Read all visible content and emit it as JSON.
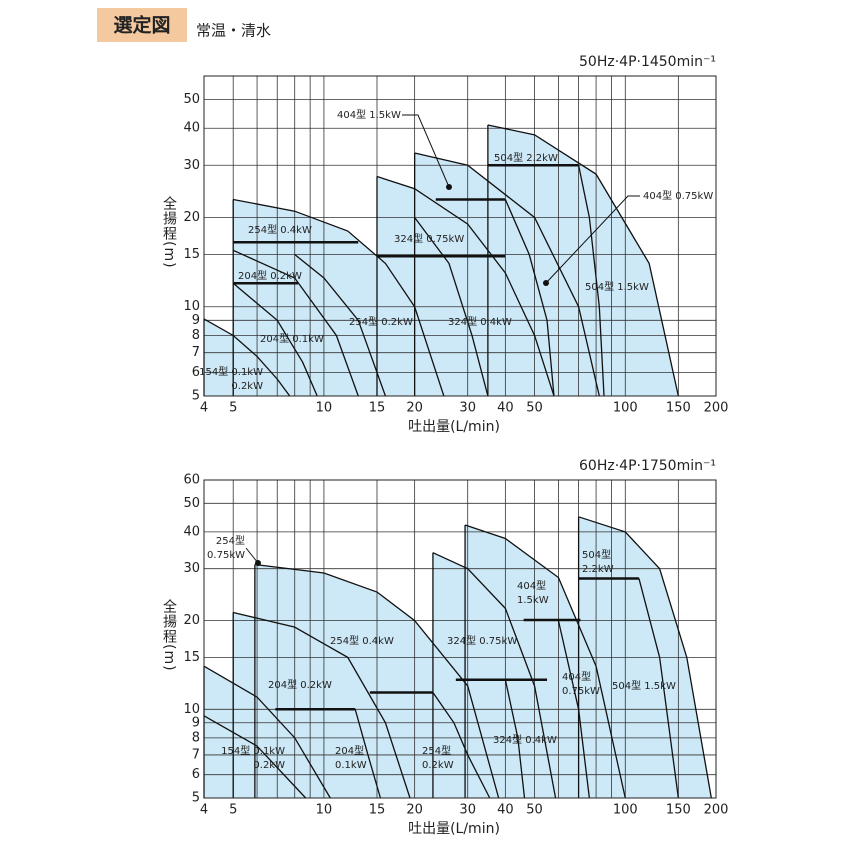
{
  "header": {
    "badge": "選定図",
    "subtitle": "常温・清水"
  },
  "chart_data": [
    {
      "type": "curve-region",
      "title": "50Hz·4P·1450min⁻¹",
      "x_label": "吐出量(L/min)",
      "y_label": "全揚程(m)",
      "xscale": "log",
      "yscale": "log",
      "xlim": [
        4,
        200
      ],
      "ylim": [
        5,
        60
      ],
      "xticks": [
        4,
        5,
        10,
        15,
        20,
        30,
        40,
        50,
        100,
        150,
        200
      ],
      "xminorticks": [
        6,
        7,
        8,
        9,
        60,
        70,
        80,
        90
      ],
      "yticks": [
        5,
        6,
        7,
        8,
        9,
        10,
        15,
        20,
        30,
        40,
        50
      ],
      "grid": true,
      "color": "#cde8f6",
      "curves": [
        {
          "x": [
            4,
            5,
            6,
            7,
            7.7
          ],
          "values": [
            9.1,
            8,
            6.8,
            5.7,
            5
          ],
          "edge": true
        },
        {
          "x": [
            5,
            8,
            12,
            16,
            20,
            25
          ],
          "values": [
            23,
            21,
            18,
            14,
            10,
            5
          ],
          "edge": true
        },
        {
          "x": [
            8,
            10,
            13,
            16
          ],
          "values": [
            15,
            12.5,
            9,
            5
          ]
        },
        {
          "x": [
            5,
            8,
            11,
            13
          ],
          "values": [
            15.5,
            12.5,
            8,
            5
          ]
        },
        {
          "x": [
            5,
            7,
            8.5,
            9.5
          ],
          "values": [
            12,
            9,
            6.5,
            5
          ]
        },
        {
          "x": [
            15,
            20,
            30,
            40,
            50,
            58
          ],
          "values": [
            27.5,
            25,
            19,
            13,
            8,
            5
          ],
          "edge": true
        },
        {
          "x": [
            20,
            26,
            31,
            35
          ],
          "values": [
            20,
            14,
            8,
            5
          ]
        },
        {
          "x": [
            20,
            30,
            50,
            70,
            82
          ],
          "values": [
            33,
            30,
            20,
            10,
            5
          ],
          "edge": true
        },
        {
          "x": [
            40,
            48,
            55,
            58
          ],
          "values": [
            23,
            15,
            9,
            5
          ]
        },
        {
          "x": [
            35,
            50,
            80,
            120,
            150
          ],
          "values": [
            41,
            38,
            28,
            14,
            5
          ],
          "edge": true
        },
        {
          "x": [
            70,
            76,
            82,
            85
          ],
          "values": [
            30,
            20,
            10,
            5
          ]
        }
      ],
      "dividers": [
        {
          "x": [
            5,
            13
          ],
          "y": 16.5
        },
        {
          "x": [
            5,
            8.2
          ],
          "y": 12
        },
        {
          "x": [
            15,
            40
          ],
          "y": 14.8
        },
        {
          "x": [
            23.5,
            40
          ],
          "y": 23
        },
        {
          "x": [
            35,
            70
          ],
          "y": 30
        }
      ],
      "labels": [
        [
          "404型 1.5kW"
        ],
        [
          "504型 2.2kW"
        ],
        [
          "404型 0.75kW"
        ],
        [
          "324型 0.75kW"
        ],
        [
          "254型 0.4kW"
        ],
        [
          "204型 0.2kW"
        ],
        [
          "254型 0.2kW"
        ],
        [
          "324型 0.4kW"
        ],
        [
          "204型 0.1kW"
        ],
        [
          "504型 1.5kW"
        ],
        [
          "154型 0.1kW",
          "0.2kW"
        ]
      ]
    },
    {
      "type": "curve-region",
      "title": "60Hz·4P·1750min⁻¹",
      "x_label": "吐出量(L/min)",
      "y_label": "全揚程(m)",
      "xscale": "log",
      "yscale": "log",
      "xlim": [
        4,
        200
      ],
      "ylim": [
        5,
        60
      ],
      "xticks": [
        4,
        5,
        10,
        15,
        20,
        30,
        40,
        50,
        100,
        150,
        200
      ],
      "xminorticks": [
        6,
        7,
        8,
        9,
        60,
        70,
        80,
        90
      ],
      "yticks": [
        5,
        6,
        7,
        8,
        9,
        10,
        15,
        20,
        30,
        40,
        50,
        60
      ],
      "grid": true,
      "color": "#cde8f6",
      "curves": [
        {
          "x": [
            4,
            6,
            8,
            10.5
          ],
          "values": [
            14,
            11,
            8,
            5
          ],
          "edge": true
        },
        {
          "x": [
            4,
            6,
            8.7
          ],
          "values": [
            9.5,
            7.5,
            5
          ]
        },
        {
          "x": [
            5,
            8,
            12,
            16,
            19.3
          ],
          "values": [
            21.3,
            19,
            15,
            9,
            5
          ],
          "edge": true
        },
        {
          "x": [
            12.7,
            14,
            15.4
          ],
          "values": [
            10,
            7,
            5
          ]
        },
        {
          "x": [
            5.9,
            10,
            15,
            20,
            30,
            38
          ],
          "values": [
            31,
            29,
            25,
            20,
            12,
            5
          ],
          "edge": true
        },
        {
          "x": [
            23,
            27,
            30,
            35.5
          ],
          "values": [
            11.4,
            9,
            7,
            5
          ]
        },
        {
          "x": [
            23,
            30,
            40,
            50,
            58.7
          ],
          "values": [
            34,
            30,
            22,
            12,
            5
          ],
          "edge": true
        },
        {
          "x": [
            40,
            44,
            46.3
          ],
          "values": [
            12.6,
            8,
            5
          ]
        },
        {
          "x": [
            29.4,
            40,
            60,
            80,
            100
          ],
          "values": [
            42.2,
            38,
            28,
            14,
            5
          ],
          "edge": true
        },
        {
          "x": [
            60,
            70,
            76
          ],
          "values": [
            20,
            10,
            5
          ]
        },
        {
          "x": [
            70,
            100,
            130,
            160,
            193
          ],
          "values": [
            45,
            40,
            30,
            15,
            5
          ],
          "edge": true
        },
        {
          "x": [
            111,
            130,
            150
          ],
          "values": [
            27.8,
            15,
            5
          ]
        }
      ],
      "dividers": [
        {
          "x": [
            6.9,
            12.7
          ],
          "y": 10
        },
        {
          "x": [
            14.2,
            23
          ],
          "y": 11.4
        },
        {
          "x": [
            27.4,
            55
          ],
          "y": 12.6
        },
        {
          "x": [
            46,
            71
          ],
          "y": 20.1
        },
        {
          "x": [
            70,
            111
          ],
          "y": 27.8
        }
      ],
      "labels": [
        [
          "254型",
          "0.75kW"
        ],
        [
          "504型",
          "2.2kW"
        ],
        [
          "404型",
          "1.5kW"
        ],
        [
          "324型 0.75kW"
        ],
        [
          "254型 0.4kW"
        ],
        [
          "204型 0.2kW"
        ],
        [
          "404型",
          "0.75kW"
        ],
        [
          "504型 1.5kW"
        ],
        [
          "324型 0.4kW"
        ],
        [
          "154型 0.1kW",
          "0.2kW"
        ],
        [
          "204型",
          "0.1kW"
        ],
        [
          "254型",
          "0.2kW"
        ]
      ]
    }
  ]
}
